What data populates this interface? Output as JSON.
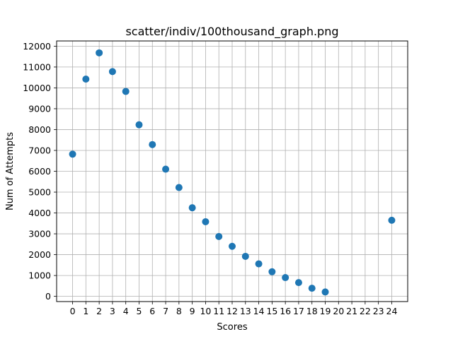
{
  "chart_data": {
    "type": "scatter",
    "title": "scatter/indiv/100thousand_graph.png",
    "xlabel": "Scores",
    "ylabel": "Num of Attempts",
    "xlim": [
      -1.2,
      25.2
    ],
    "ylim": [
      -250,
      12250
    ],
    "xticks": [
      0,
      1,
      2,
      3,
      4,
      5,
      6,
      7,
      8,
      9,
      10,
      11,
      12,
      13,
      14,
      15,
      16,
      17,
      18,
      19,
      20,
      21,
      22,
      23,
      24
    ],
    "yticks": [
      0,
      1000,
      2000,
      3000,
      4000,
      5000,
      6000,
      7000,
      8000,
      9000,
      10000,
      11000,
      12000
    ],
    "grid": true,
    "point_color": "#1f77b4",
    "points": [
      {
        "x": 0,
        "y": 6820
      },
      {
        "x": 1,
        "y": 10420
      },
      {
        "x": 2,
        "y": 11680
      },
      {
        "x": 3,
        "y": 10780
      },
      {
        "x": 4,
        "y": 9830
      },
      {
        "x": 5,
        "y": 8230
      },
      {
        "x": 6,
        "y": 7280
      },
      {
        "x": 7,
        "y": 6100
      },
      {
        "x": 8,
        "y": 5220
      },
      {
        "x": 9,
        "y": 4250
      },
      {
        "x": 10,
        "y": 3580
      },
      {
        "x": 11,
        "y": 2870
      },
      {
        "x": 12,
        "y": 2400
      },
      {
        "x": 13,
        "y": 1920
      },
      {
        "x": 14,
        "y": 1560
      },
      {
        "x": 15,
        "y": 1180
      },
      {
        "x": 16,
        "y": 900
      },
      {
        "x": 17,
        "y": 660
      },
      {
        "x": 18,
        "y": 390
      },
      {
        "x": 19,
        "y": 210
      },
      {
        "x": 24,
        "y": 3650
      }
    ]
  }
}
